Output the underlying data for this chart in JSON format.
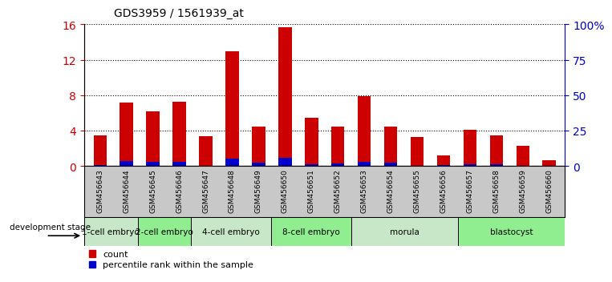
{
  "title": "GDS3959 / 1561939_at",
  "samples": [
    "GSM456643",
    "GSM456644",
    "GSM456645",
    "GSM456646",
    "GSM456647",
    "GSM456648",
    "GSM456649",
    "GSM456650",
    "GSM456651",
    "GSM456652",
    "GSM456653",
    "GSM456654",
    "GSM456655",
    "GSM456656",
    "GSM456657",
    "GSM456658",
    "GSM456659",
    "GSM456660"
  ],
  "count_values": [
    3.5,
    7.2,
    6.2,
    7.3,
    3.4,
    13.0,
    4.5,
    15.7,
    5.5,
    4.5,
    7.9,
    4.5,
    3.3,
    1.2,
    4.1,
    3.5,
    2.3,
    0.7
  ],
  "percentile_values": [
    1.0,
    3.5,
    3.2,
    3.2,
    0.5,
    5.5,
    2.8,
    6.0,
    1.5,
    2.0,
    3.3,
    2.3,
    0.5,
    0.8,
    1.5,
    1.3,
    0.3,
    0.3
  ],
  "bar_color_red": "#cc0000",
  "bar_color_blue": "#0000cc",
  "ylim_left": [
    0,
    16
  ],
  "ylim_right": [
    0,
    100
  ],
  "yticks_left": [
    0,
    4,
    8,
    12,
    16
  ],
  "yticks_right": [
    0,
    25,
    50,
    75,
    100
  ],
  "ytick_labels_right": [
    "0",
    "25",
    "50",
    "75",
    "100%"
  ],
  "stages": [
    {
      "label": "1-cell embryo",
      "start": 0,
      "end": 2
    },
    {
      "label": "2-cell embryo",
      "start": 2,
      "end": 4
    },
    {
      "label": "4-cell embryo",
      "start": 4,
      "end": 7
    },
    {
      "label": "8-cell embryo",
      "start": 7,
      "end": 10
    },
    {
      "label": "morula",
      "start": 10,
      "end": 14
    },
    {
      "label": "blastocyst",
      "start": 14,
      "end": 18
    }
  ],
  "stage_colors": [
    "#c8e6c8",
    "#90ee90",
    "#c8e6c8",
    "#90ee90",
    "#c8e6c8",
    "#90ee90"
  ],
  "dev_stage_label": "development stage",
  "legend_count": "count",
  "legend_percentile": "percentile rank within the sample",
  "bar_width": 0.5,
  "grid_color": "#000000",
  "sample_band_color": "#c8c8c8",
  "left_tick_color": "#cc0000",
  "right_tick_color": "#0000cc",
  "title_fontsize": 10,
  "xlabel_fontsize": 6.5
}
